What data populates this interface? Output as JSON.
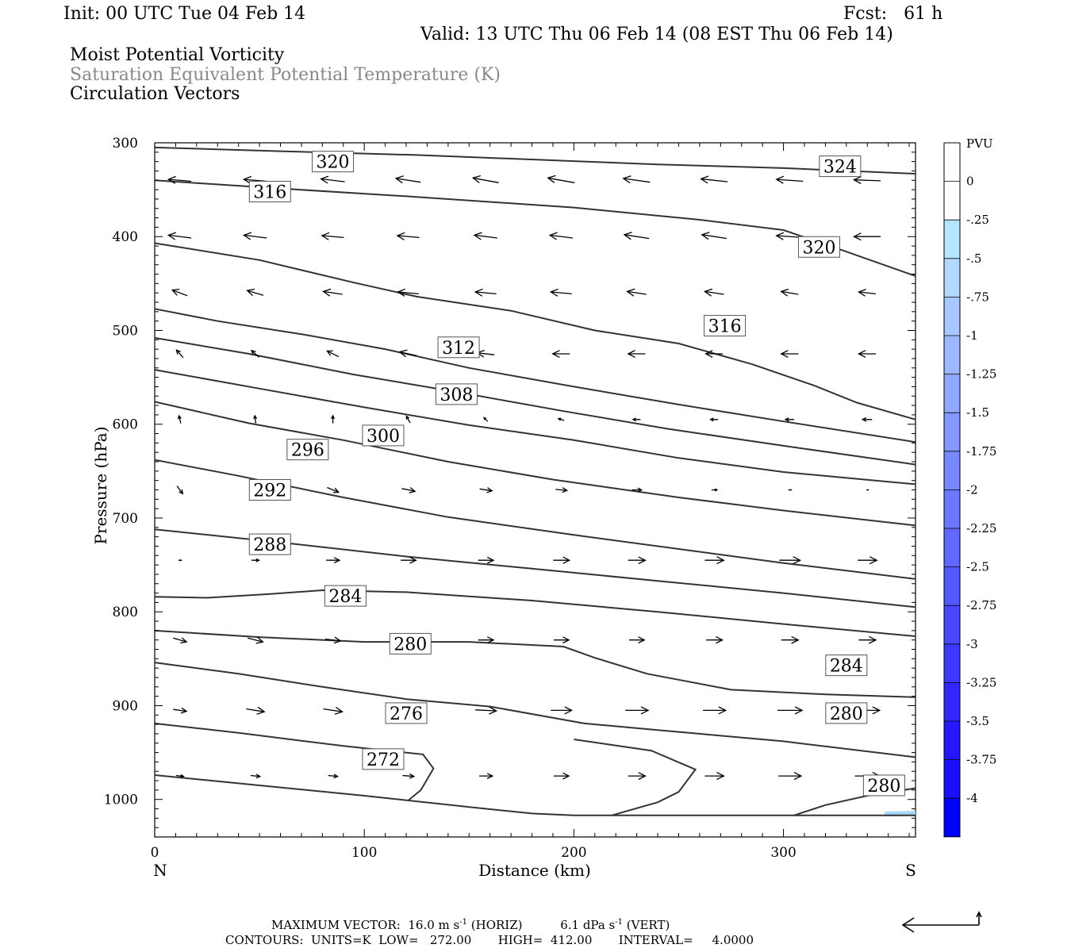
{
  "header": {
    "init": "Init: 00 UTC Tue 04 Feb 14",
    "fcst": "Fcst:   61 h",
    "valid": "Valid: 13 UTC Thu 06 Feb 14 (08 EST Thu 06 Feb 14)",
    "field1": "Moist Potential Vorticity",
    "field2": "Saturation Equivalent Potential Temperature (K)",
    "field3": "Circulation Vectors"
  },
  "chart_data": {
    "type": "line",
    "xlabel": "Distance (km)",
    "ylabel": "Pressure (hPa)",
    "xlim": [
      0,
      363
    ],
    "ylim": [
      1040,
      300
    ],
    "x_ticks": [
      "0",
      "100",
      "200",
      "300"
    ],
    "y_ticks": [
      "300",
      "400",
      "500",
      "600",
      "700",
      "800",
      "900",
      "1000"
    ],
    "x_end_labels": {
      "left": "N",
      "right": "S"
    },
    "contour_labels": [
      {
        "text": "320",
        "x": 85,
        "p": 320
      },
      {
        "text": "316",
        "x": 55,
        "p": 352
      },
      {
        "text": "324",
        "x": 327,
        "p": 325
      },
      {
        "text": "320",
        "x": 317,
        "p": 411
      },
      {
        "text": "316",
        "x": 272,
        "p": 495
      },
      {
        "text": "312",
        "x": 145,
        "p": 518
      },
      {
        "text": "308",
        "x": 144,
        "p": 568
      },
      {
        "text": "300",
        "x": 109,
        "p": 612
      },
      {
        "text": "296",
        "x": 73,
        "p": 627
      },
      {
        "text": "292",
        "x": 55,
        "p": 670
      },
      {
        "text": "288",
        "x": 55,
        "p": 728
      },
      {
        "text": "284",
        "x": 91,
        "p": 783
      },
      {
        "text": "280",
        "x": 122,
        "p": 834
      },
      {
        "text": "284",
        "x": 330,
        "p": 857
      },
      {
        "text": "276",
        "x": 120,
        "p": 908
      },
      {
        "text": "280",
        "x": 330,
        "p": 908
      },
      {
        "text": "272",
        "x": 109,
        "p": 957
      },
      {
        "text": "280",
        "x": 348,
        "p": 985
      }
    ],
    "colorbar": {
      "title": "PVU",
      "labels": [
        "0",
        "-.25",
        "-.5",
        "-.75",
        "-1",
        "-1.25",
        "-1.5",
        "-1.75",
        "-2",
        "-2.25",
        "-2.5",
        "-2.75",
        "-3",
        "-3.25",
        "-3.5",
        "-3.75",
        "-4"
      ],
      "colors": [
        "#ffffff",
        "#ffffff",
        "#b4e6ff",
        "#b4d8ff",
        "#a8c8ff",
        "#9cb8ff",
        "#90a8ff",
        "#8498ff",
        "#7888ff",
        "#6c78ff",
        "#6068ff",
        "#5458ff",
        "#4848ff",
        "#3c38ff",
        "#3028ff",
        "#2418ff",
        "#1810ff",
        "#0000ff"
      ]
    }
  },
  "footer": {
    "maxvec_label": "MAXIMUM VECTOR:",
    "maxvec_horiz": "16.0 m s",
    "maxvec_horiz_unit": "(HORIZ)",
    "maxvec_vert": "6.1 dPa s",
    "maxvec_vert_unit": "(VERT)",
    "exp": "-1",
    "contours": "CONTOURS:  UNITS=K  LOW=   272.00       HIGH=  412.00       INTERVAL=     4.0000"
  }
}
